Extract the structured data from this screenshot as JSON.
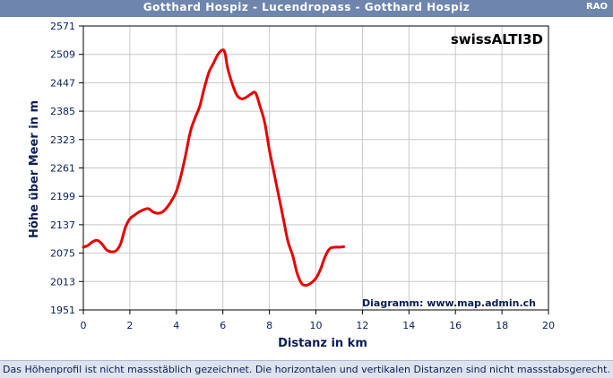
{
  "header": {
    "title": "Gotthard Hospiz - Lucendropass - Gotthard Hospiz",
    "code": "RAO"
  },
  "footer": {
    "note": "Das Höhenprofil ist nicht massstäblich gezeichnet. Die horizontalen und vertikalen Distanzen sind nicht massstabsgerecht."
  },
  "colors": {
    "line": "#e60000",
    "header_bg": "#6e86ae",
    "plot_bg": "#ffffff",
    "grid": "#c8c8c8"
  },
  "chart_data": {
    "type": "line",
    "title": "",
    "brand": "swissALTI3D",
    "credit": "Diagramm: www.map.admin.ch",
    "xlabel": "Distanz in km",
    "ylabel": "Höhe über Meer in m",
    "xlim": [
      0,
      20
    ],
    "ylim": [
      1951,
      2571
    ],
    "xticks": [
      0,
      2,
      4,
      6,
      8,
      10,
      12,
      14,
      16,
      18,
      20
    ],
    "yticks": [
      1951,
      2013,
      2075,
      2137,
      2199,
      2261,
      2323,
      2385,
      2447,
      2509,
      2571
    ],
    "grid": true,
    "series": [
      {
        "x": [
          0,
          0.2,
          0.4,
          0.6,
          0.8,
          1.0,
          1.2,
          1.4,
          1.6,
          1.8,
          2.0,
          2.2,
          2.4,
          2.6,
          2.8,
          3.0,
          3.2,
          3.4,
          3.6,
          3.8,
          4.0,
          4.2,
          4.4,
          4.6,
          4.8,
          5.0,
          5.2,
          5.4,
          5.6,
          5.8,
          6.0,
          6.1,
          6.2,
          6.4,
          6.6,
          6.8,
          7.0,
          7.2,
          7.4,
          7.6,
          7.8,
          8.0,
          8.2,
          8.4,
          8.6,
          8.8,
          9.0,
          9.2,
          9.4,
          9.6,
          9.8,
          10.0,
          10.2,
          10.4,
          10.6,
          10.8,
          11.0,
          11.2
        ],
        "y": [
          2088,
          2092,
          2100,
          2103,
          2095,
          2082,
          2078,
          2080,
          2095,
          2130,
          2150,
          2158,
          2165,
          2170,
          2172,
          2165,
          2162,
          2165,
          2175,
          2190,
          2210,
          2245,
          2290,
          2340,
          2370,
          2395,
          2435,
          2470,
          2490,
          2510,
          2519,
          2510,
          2480,
          2445,
          2420,
          2412,
          2415,
          2422,
          2425,
          2395,
          2360,
          2300,
          2250,
          2200,
          2150,
          2100,
          2070,
          2030,
          2008,
          2005,
          2010,
          2020,
          2040,
          2068,
          2085,
          2088,
          2088,
          2089
        ]
      }
    ]
  }
}
